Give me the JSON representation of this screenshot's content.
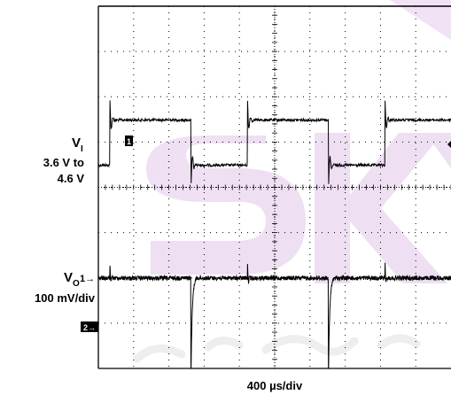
{
  "chart_data": {
    "type": "line",
    "title": "",
    "xlabel": "400 µs/div",
    "x_unit": "µs",
    "time_per_div_us": 400,
    "x_range_us": [
      0,
      4000
    ],
    "grid": true,
    "grid_divisions": {
      "horizontal": 10,
      "vertical": 8
    },
    "series": [
      {
        "name": "VI",
        "label_main": "V",
        "label_sub": "I",
        "scale_line1": "3.6 V to",
        "scale_line2": "4.6 V",
        "channel_marker": "1",
        "color": "#000000",
        "low_V": 3.6,
        "high_V": 4.6,
        "transitions_us": [
          {
            "t": 130,
            "to": "high"
          },
          {
            "t": 1050,
            "to": "low"
          },
          {
            "t": 1690,
            "to": "high"
          },
          {
            "t": 2610,
            "to": "low"
          },
          {
            "t": 3250,
            "to": "high"
          }
        ]
      },
      {
        "name": "VO",
        "label_main": "V",
        "label_sub": "O",
        "label_arrow": "1→",
        "scale_line1": "100 mV/div",
        "channel_marker": "2→",
        "color": "#000000",
        "unit": "mV",
        "baseline_mV": 0,
        "line_transient_peak_mV": 43,
        "load_dip_mV": -220
      }
    ]
  }
}
